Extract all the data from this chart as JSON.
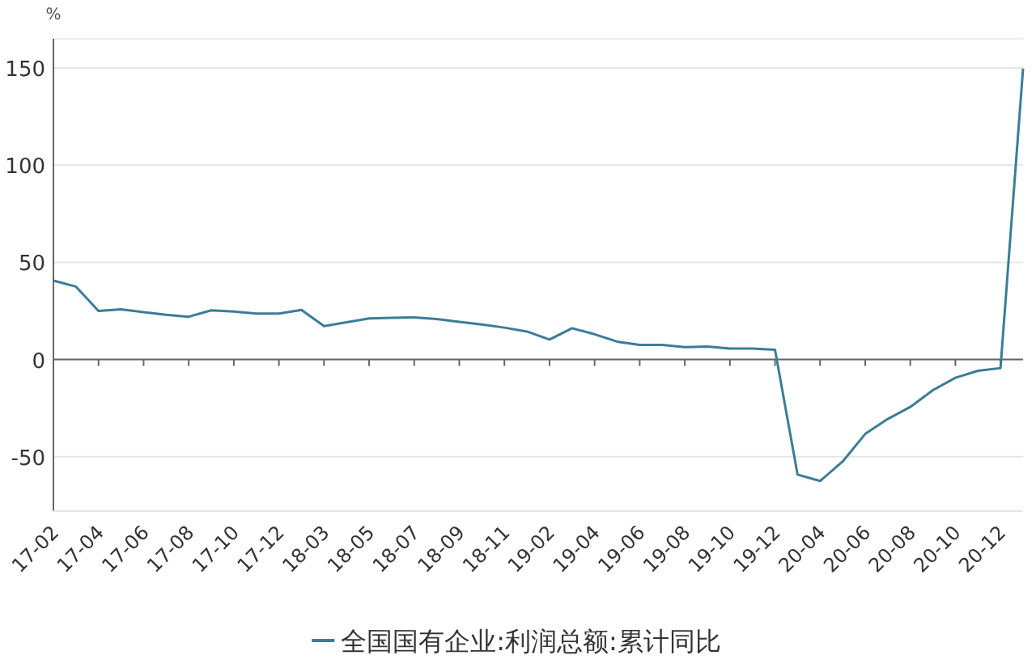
{
  "chart_data": {
    "type": "line",
    "ylabel": "%",
    "categories": [
      "17-02",
      null,
      "17-04",
      null,
      "17-06",
      null,
      "17-08",
      null,
      "17-10",
      null,
      "17-12",
      null,
      "18-03",
      null,
      "18-05",
      null,
      "18-07",
      null,
      "18-09",
      null,
      "18-11",
      null,
      "19-02",
      null,
      "19-04",
      null,
      "19-06",
      null,
      "19-08",
      null,
      "19-10",
      null,
      "19-12",
      null,
      "20-04",
      null,
      "20-06",
      null,
      "20-08",
      null,
      "20-10",
      null,
      "20-12",
      null
    ],
    "series": [
      {
        "name": "全国国有企业:利润总额:累计同比",
        "color": "#3b7d96",
        "values": [
          40.6,
          37.5,
          25,
          25.8,
          24.4,
          23,
          22,
          25.3,
          24.7,
          23.6,
          23.6,
          25.5,
          17.2,
          19.2,
          21.1,
          21.4,
          21.7,
          20.8,
          19.4,
          18,
          16.4,
          14.4,
          10.3,
          16.1,
          13,
          9.2,
          7.5,
          7.5,
          6.4,
          6.7,
          5.6,
          5.6,
          5,
          -59.2,
          -62.5,
          -52.5,
          -38.3,
          -30.6,
          -24.4,
          -15.8,
          -9.4,
          -5.8,
          -4.4,
          149.7
        ]
      }
    ],
    "ylim": [
      -78,
      165
    ],
    "yticks": [
      -50,
      0,
      50,
      100,
      150
    ],
    "grid": "y",
    "legend": "bottom",
    "marker": "none",
    "line_style": "solid"
  }
}
